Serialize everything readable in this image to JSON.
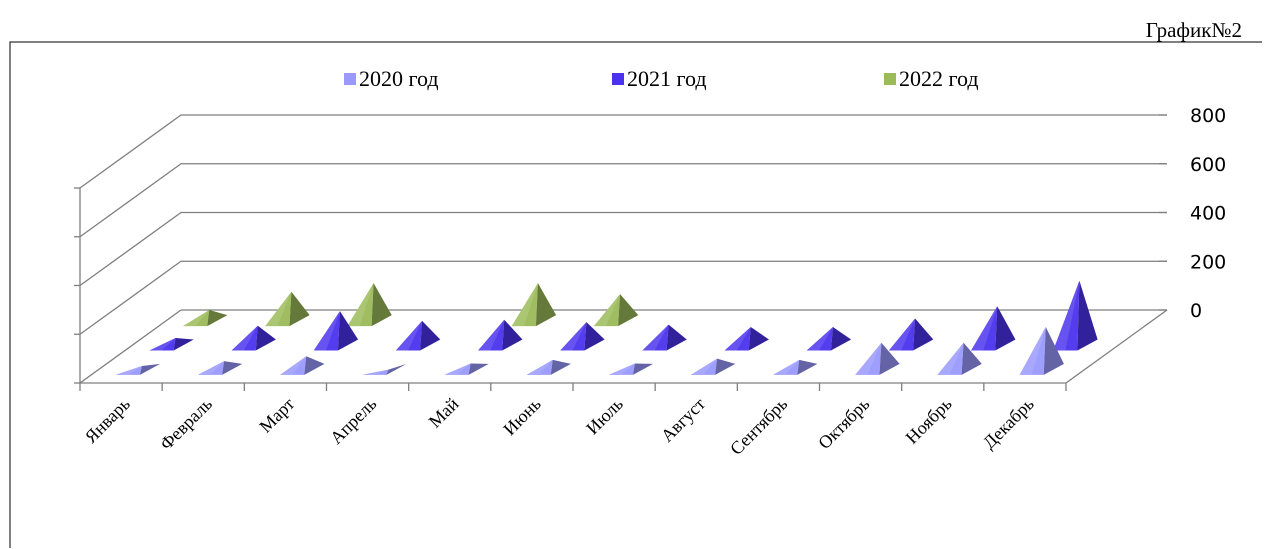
{
  "caption": "График№2",
  "chart_data": {
    "type": "bar",
    "subtype": "3d-pyramid",
    "categories": [
      "Январь",
      "Февраль",
      "Март",
      "Апрель",
      "Май",
      "Июнь",
      "Июль",
      "Август",
      "Сентябрь",
      "Октябрь",
      "Ноябрь",
      "Декабрь"
    ],
    "series": [
      {
        "name": "2020 год",
        "color": "#9999ff",
        "values": [
          20,
          40,
          60,
          5,
          30,
          45,
          30,
          50,
          45,
          115,
          115,
          180
        ]
      },
      {
        "name": "2021 год",
        "color": "#4b33ee",
        "values": [
          35,
          85,
          145,
          105,
          110,
          100,
          90,
          80,
          80,
          115,
          165,
          270
        ]
      },
      {
        "name": "2022 год",
        "color": "#9bbb59",
        "values": [
          50,
          125,
          160,
          null,
          160,
          115,
          null,
          null,
          null,
          null,
          null,
          null
        ]
      }
    ],
    "yticks": [
      "800",
      "600",
      "400",
      "200",
      "0"
    ],
    "ylim": [
      0,
      800
    ],
    "grid": true,
    "legend": "top"
  }
}
